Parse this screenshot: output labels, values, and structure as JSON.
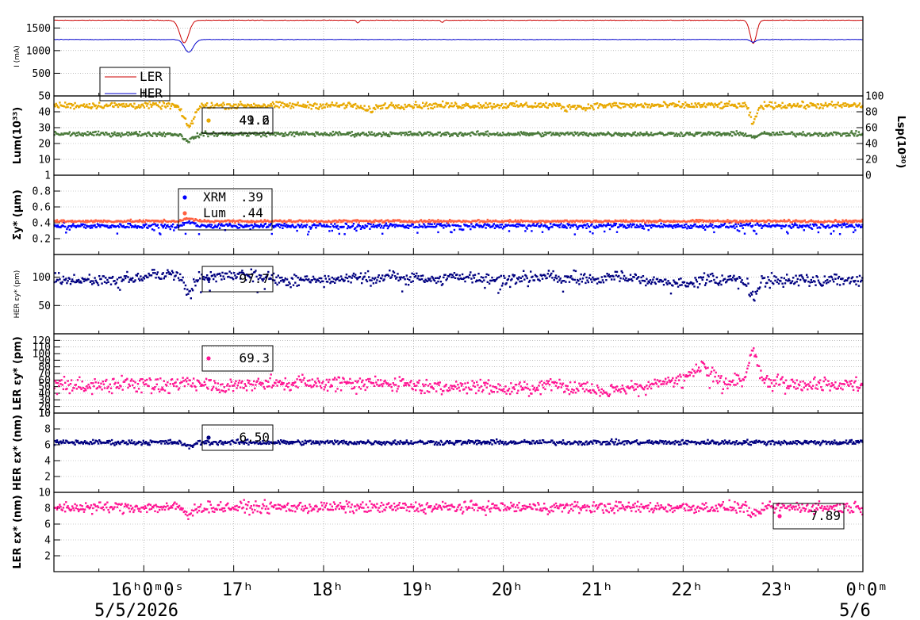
{
  "chart_data": {
    "type": "line",
    "x_range": [
      "5/5/2026 15:00",
      "5/6/2026 00:00"
    ],
    "x_tick_hours": [
      16,
      17,
      18,
      19,
      20,
      21,
      22,
      23,
      24
    ],
    "x_tick_labels_top": [
      "16ʰ0ᵐ0ˢ",
      "17ʰ",
      "18ʰ",
      "19ʰ",
      "20ʰ",
      "21ʰ",
      "22ʰ",
      "23ʰ",
      "0ʰ0ᵐ"
    ],
    "date_left": "5/5/2026",
    "date_right": "5/6",
    "grid": true,
    "panels": [
      {
        "ylabel": "I (mA)",
        "ylim": [
          0,
          1750
        ],
        "yticks": [
          500,
          1000,
          1500
        ],
        "ytick_labels": [
          "500",
          "1000",
          "1500"
        ],
        "legend": {
          "placement": "bottom-left",
          "entries": [
            {
              "name": "LER",
              "color": "#cc0000"
            },
            {
              "name": "HER",
              "color": "#0000cc"
            }
          ]
        },
        "series": [
          {
            "name": "LER",
            "color": "#cc0000",
            "base": 1670,
            "noise": 3,
            "dips": [
              [
                16.45,
                500,
                0.07
              ],
              [
                22.78,
                510,
                0.05
              ],
              [
                18.38,
                60,
                0.02
              ],
              [
                19.32,
                50,
                0.02
              ]
            ]
          },
          {
            "name": "HER",
            "color": "#0000cc",
            "base": 1245,
            "noise": 3,
            "dips": [
              [
                16.5,
                280,
                0.07
              ],
              [
                22.78,
                60,
                0.04
              ]
            ]
          }
        ]
      },
      {
        "ylabel": "Lum(10³³)",
        "ylim": [
          0,
          50
        ],
        "yticks": [
          10,
          20,
          30,
          40,
          50
        ],
        "ytick_labels": [
          "10",
          "20",
          "30",
          "40",
          "50"
        ],
        "ylabel_right": "Lsp(10³⁰)",
        "right_ticks": [
          "0",
          "20",
          "40",
          "60",
          "80",
          "100"
        ],
        "legend": {
          "placement": "top-left",
          "entries": [
            {
              "name": "",
              "value": "49.2",
              "color": "#e8a800"
            },
            {
              "name": "",
              "value": "41.6",
              "color": "#e8a800"
            }
          ]
        },
        "series": [
          {
            "name": "Lum",
            "color": "#e8a800",
            "base": 44,
            "noise": 1.0,
            "dips": [
              [
                16.5,
                13,
                0.08
              ],
              [
                22.78,
                11,
                0.05
              ],
              [
                18.5,
                3,
                0.1
              ],
              [
                20.7,
                2,
                0.05
              ],
              [
                20.9,
                2,
                0.05
              ]
            ]
          },
          {
            "name": "Lsp",
            "color": "#4a7a3a",
            "base": 26,
            "noise": 0.7,
            "dips": [
              [
                16.5,
                4,
                0.08
              ],
              [
                22.78,
                2,
                0.05
              ]
            ]
          }
        ]
      },
      {
        "ylabel": "Σy* (μm)",
        "ylim": [
          0,
          1
        ],
        "yticks": [
          0.2,
          0.4,
          0.6,
          0.8,
          1
        ],
        "ytick_labels": [
          "0.2",
          "0.4",
          "0.6",
          "0.8",
          "1"
        ],
        "legend": {
          "placement": "top-left",
          "entries": [
            {
              "name": "XRM",
              "value": ".39",
              "color": "#0000ff"
            },
            {
              "name": "Lum",
              "value": ".44",
              "color": "#ff6040"
            }
          ]
        },
        "series": [
          {
            "name": "XRM",
            "color": "#0000ff",
            "base": 0.36,
            "noise": 0.015,
            "outliers": 0.05,
            "dips": [
              [
                16.5,
                -0.04,
                0.08
              ]
            ]
          },
          {
            "name": "Lum",
            "color": "#ff6040",
            "base": 0.42,
            "noise": 0.008,
            "dips": [
              [
                16.5,
                -0.03,
                0.08
              ]
            ]
          }
        ]
      },
      {
        "ylabel": "HER εy* (pm)",
        "ylim": [
          0,
          140
        ],
        "yticks": [
          50,
          100
        ],
        "ytick_labels": [
          "50",
          "100"
        ],
        "legend": {
          "placement": "top-left",
          "entries": [
            {
              "name": "",
              "value": "97.7",
              "color": "#000080"
            }
          ]
        },
        "series": [
          {
            "name": "HER εy*",
            "color": "#000080",
            "base": 97,
            "noise": 5,
            "wander": 10,
            "outliers": 0.01,
            "dips": [
              [
                16.5,
                35,
                0.07
              ],
              [
                22.78,
                30,
                0.06
              ]
            ]
          }
        ]
      },
      {
        "ylabel": "LER εy* (pm)",
        "ylim": [
          10,
          130
        ],
        "yticks": [
          10,
          20,
          30,
          40,
          50,
          60,
          70,
          80,
          90,
          100,
          110,
          120
        ],
        "ytick_labels": [
          "10",
          "20",
          "30",
          "40",
          "50",
          "60",
          "70",
          "80",
          "90",
          "100",
          "110",
          "120"
        ],
        "legend": {
          "placement": "top-left",
          "entries": [
            {
              "name": "",
              "value": "69.3",
              "color": "#ff1493"
            }
          ]
        },
        "series": [
          {
            "name": "LER εy*",
            "color": "#ff1493",
            "base": 55,
            "noise": 5,
            "wander": 10,
            "outliers": 0.08,
            "dips": [
              [
                22.78,
                -45,
                0.06
              ],
              [
                22.2,
                -20,
                0.12
              ]
            ]
          }
        ]
      },
      {
        "ylabel": "HER εx* (nm)",
        "ylim": [
          0,
          10
        ],
        "yticks": [
          2,
          4,
          6,
          8,
          10
        ],
        "ytick_labels": [
          "2",
          "4",
          "6",
          "8",
          "10"
        ],
        "legend": {
          "placement": "top-left",
          "entries": [
            {
              "name": "",
              "value": "6.50",
              "color": "#000080"
            }
          ]
        },
        "series": [
          {
            "name": "HER εx*",
            "color": "#000080",
            "base": 6.3,
            "noise": 0.15,
            "dips": [
              [
                16.5,
                0.6,
                0.06
              ]
            ]
          }
        ]
      },
      {
        "ylabel": "LER εx* (nm)",
        "ylim": [
          0,
          10
        ],
        "yticks": [
          2,
          4,
          6,
          8,
          10
        ],
        "ytick_labels": [
          "2",
          "4",
          "6",
          "8",
          "10"
        ],
        "legend": {
          "placement": "bottom-right",
          "entries": [
            {
              "name": "",
              "value": "7.89",
              "color": "#ff1493"
            }
          ]
        },
        "series": [
          {
            "name": "LER εx*",
            "color": "#ff1493",
            "base": 8.1,
            "noise": 0.35,
            "dips": [
              [
                16.5,
                1.2,
                0.05
              ],
              [
                22.8,
                1.2,
                0.06
              ]
            ]
          }
        ]
      }
    ]
  }
}
